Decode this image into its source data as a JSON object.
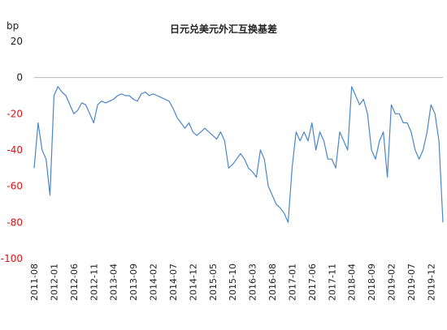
{
  "chart_data": {
    "type": "line",
    "title": "日元兑美元外汇互换基差",
    "ylabel": "bp",
    "xlabel": "",
    "ylim": [
      -100,
      20
    ],
    "yticks": [
      20,
      0,
      -20,
      -40,
      -60,
      -80,
      -100
    ],
    "x_tick_labels": [
      "2011-08",
      "2012-01",
      "2012-06",
      "2012-11",
      "2013-04",
      "2013-09",
      "2014-02",
      "2014-07",
      "2014-12",
      "2015-05",
      "2015-10",
      "2016-03",
      "2016-08",
      "2017-01",
      "2017-06",
      "2017-11",
      "2018-04",
      "2018-09",
      "2019-02",
      "2019-07",
      "2019-12"
    ],
    "grid": false,
    "legend": "none",
    "series": [
      {
        "color": "#4a86c8",
        "x": [
          "2011-08",
          "2011-09",
          "2011-10",
          "2011-11",
          "2011-12",
          "2012-01",
          "2012-02",
          "2012-03",
          "2012-04",
          "2012-05",
          "2012-06",
          "2012-07",
          "2012-08",
          "2012-09",
          "2012-10",
          "2012-11",
          "2012-12",
          "2013-01",
          "2013-02",
          "2013-03",
          "2013-04",
          "2013-05",
          "2013-06",
          "2013-07",
          "2013-08",
          "2013-09",
          "2013-10",
          "2013-11",
          "2013-12",
          "2014-01",
          "2014-02",
          "2014-03",
          "2014-04",
          "2014-05",
          "2014-06",
          "2014-07",
          "2014-08",
          "2014-09",
          "2014-10",
          "2014-11",
          "2014-12",
          "2015-01",
          "2015-02",
          "2015-03",
          "2015-04",
          "2015-05",
          "2015-06",
          "2015-07",
          "2015-08",
          "2015-09",
          "2015-10",
          "2015-11",
          "2015-12",
          "2016-01",
          "2016-02",
          "2016-03",
          "2016-04",
          "2016-05",
          "2016-06",
          "2016-07",
          "2016-08",
          "2016-09",
          "2016-10",
          "2016-11",
          "2016-12",
          "2017-01",
          "2017-02",
          "2017-03",
          "2017-04",
          "2017-05",
          "2017-06",
          "2017-07",
          "2017-08",
          "2017-09",
          "2017-10",
          "2017-11",
          "2017-12",
          "2018-01",
          "2018-02",
          "2018-03",
          "2018-04",
          "2018-05",
          "2018-06",
          "2018-07",
          "2018-08",
          "2018-09",
          "2018-10",
          "2018-11",
          "2018-12",
          "2019-01",
          "2019-02",
          "2019-03",
          "2019-04",
          "2019-05",
          "2019-06",
          "2019-07",
          "2019-08",
          "2019-09",
          "2019-10",
          "2019-11",
          "2019-12",
          "2020-01",
          "2020-02",
          "2020-03"
        ],
        "values": [
          -50,
          -25,
          -40,
          -45,
          -65,
          -10,
          -5,
          -8,
          -10,
          -15,
          -20,
          -18,
          -14,
          -15,
          -20,
          -25,
          -15,
          -13,
          -14,
          -13,
          -12,
          -10,
          -9,
          -10,
          -10,
          -12,
          -13,
          -9,
          -8,
          -10,
          -9,
          -10,
          -11,
          -12,
          -13,
          -17,
          -22,
          -25,
          -28,
          -25,
          -30,
          -32,
          -30,
          -28,
          -30,
          -32,
          -34,
          -30,
          -35,
          -50,
          -48,
          -45,
          -42,
          -45,
          -50,
          -52,
          -55,
          -40,
          -45,
          -60,
          -65,
          -70,
          -72,
          -75,
          -80,
          -50,
          -30,
          -35,
          -30,
          -35,
          -25,
          -40,
          -30,
          -35,
          -45,
          -45,
          -50,
          -30,
          -35,
          -40,
          -5,
          -10,
          -15,
          -12,
          -20,
          -40,
          -45,
          -35,
          -30,
          -55,
          -15,
          -20,
          -20,
          -25,
          -25,
          -30,
          -40,
          -45,
          -40,
          -30,
          -15,
          -20,
          -35,
          -80
        ]
      }
    ]
  }
}
